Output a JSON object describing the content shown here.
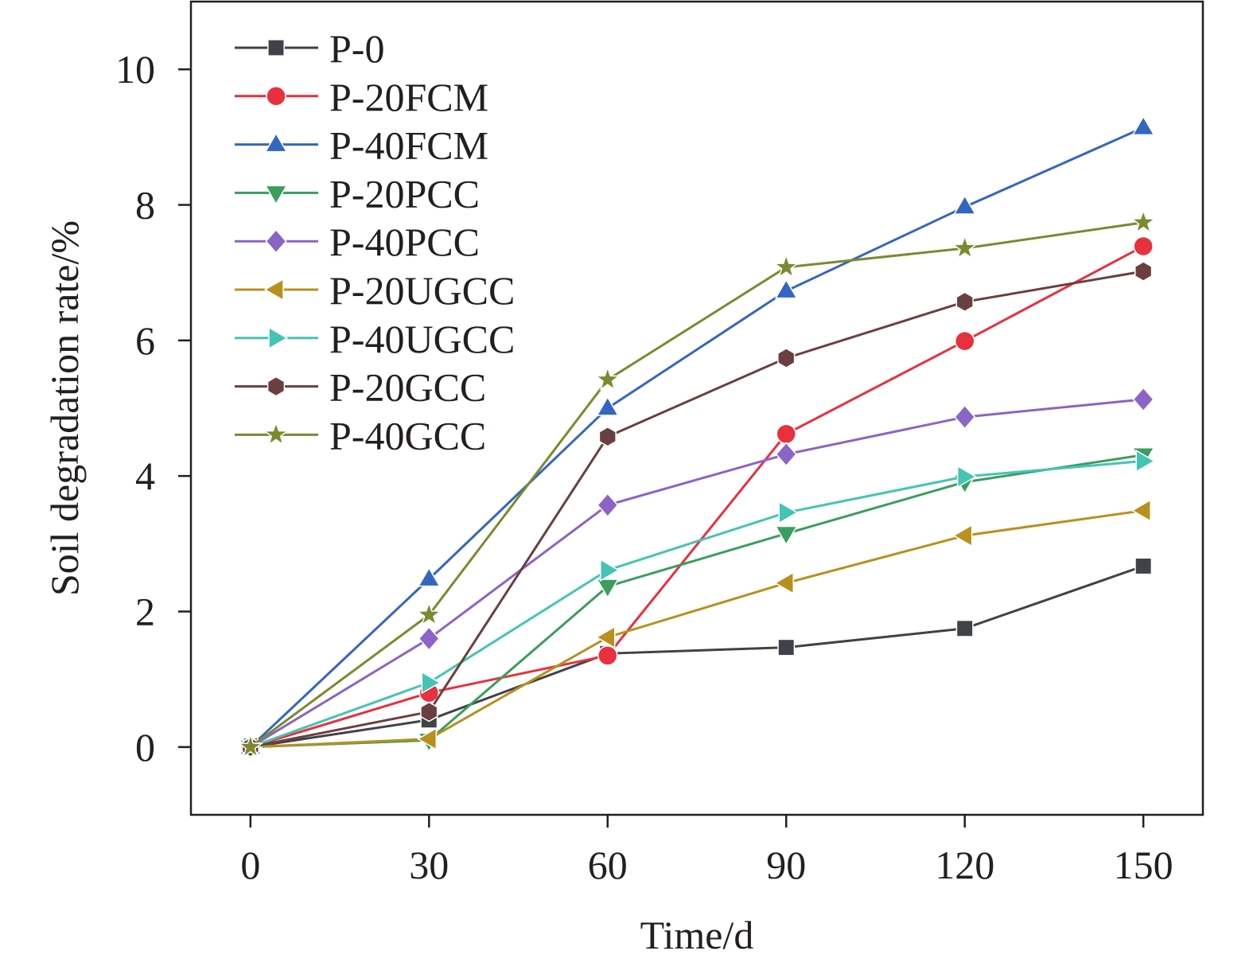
{
  "chart_data": {
    "type": "line",
    "title": "",
    "xlabel": "Time/d",
    "ylabel": "Soil degradation rate/%",
    "xlim": [
      -10,
      160
    ],
    "ylim": [
      -1,
      11
    ],
    "x": [
      0,
      30,
      60,
      90,
      120,
      150
    ],
    "xticks": [
      0,
      30,
      60,
      90,
      120,
      150
    ],
    "xtick_labels": [
      "0",
      "30",
      "60",
      "90",
      "120",
      "150"
    ],
    "yticks": [
      0,
      2,
      4,
      6,
      8,
      10
    ],
    "ytick_labels": [
      "0",
      "2",
      "4",
      "6",
      "8",
      "10"
    ],
    "grid": false,
    "legend_position": "top-left",
    "series": [
      {
        "name": "P-0",
        "color": "#3f4247",
        "marker": "square",
        "values": [
          0,
          0.4,
          1.38,
          1.47,
          1.75,
          2.67
        ]
      },
      {
        "name": "P-20FCM",
        "color": "#e8303e",
        "marker": "circle",
        "values": [
          0,
          0.8,
          1.35,
          4.62,
          5.99,
          7.39
        ]
      },
      {
        "name": "P-40FCM",
        "color": "#3366c2",
        "marker": "triangle-up",
        "values": [
          0,
          2.48,
          5.0,
          6.73,
          7.97,
          9.14
        ]
      },
      {
        "name": "P-20PCC",
        "color": "#3a9e5c",
        "marker": "triangle-down",
        "values": [
          0,
          0.1,
          2.37,
          3.15,
          3.91,
          4.31
        ]
      },
      {
        "name": "P-40PCC",
        "color": "#8c63c6",
        "marker": "diamond",
        "values": [
          0,
          1.6,
          3.57,
          4.32,
          4.87,
          5.13
        ]
      },
      {
        "name": "P-20UGCC",
        "color": "#b8901e",
        "marker": "triangle-left",
        "values": [
          0,
          0.12,
          1.62,
          2.42,
          3.12,
          3.49
        ]
      },
      {
        "name": "P-40UGCC",
        "color": "#44c4b5",
        "marker": "triangle-right",
        "values": [
          0,
          0.95,
          2.61,
          3.46,
          3.99,
          4.22
        ]
      },
      {
        "name": "P-20GCC",
        "color": "#6b3f3f",
        "marker": "hexagon",
        "values": [
          0,
          0.52,
          4.58,
          5.74,
          6.57,
          7.02
        ]
      },
      {
        "name": "P-40GCC",
        "color": "#7b8a2e",
        "marker": "star",
        "values": [
          0,
          1.95,
          5.42,
          7.08,
          7.36,
          7.74
        ]
      }
    ]
  }
}
